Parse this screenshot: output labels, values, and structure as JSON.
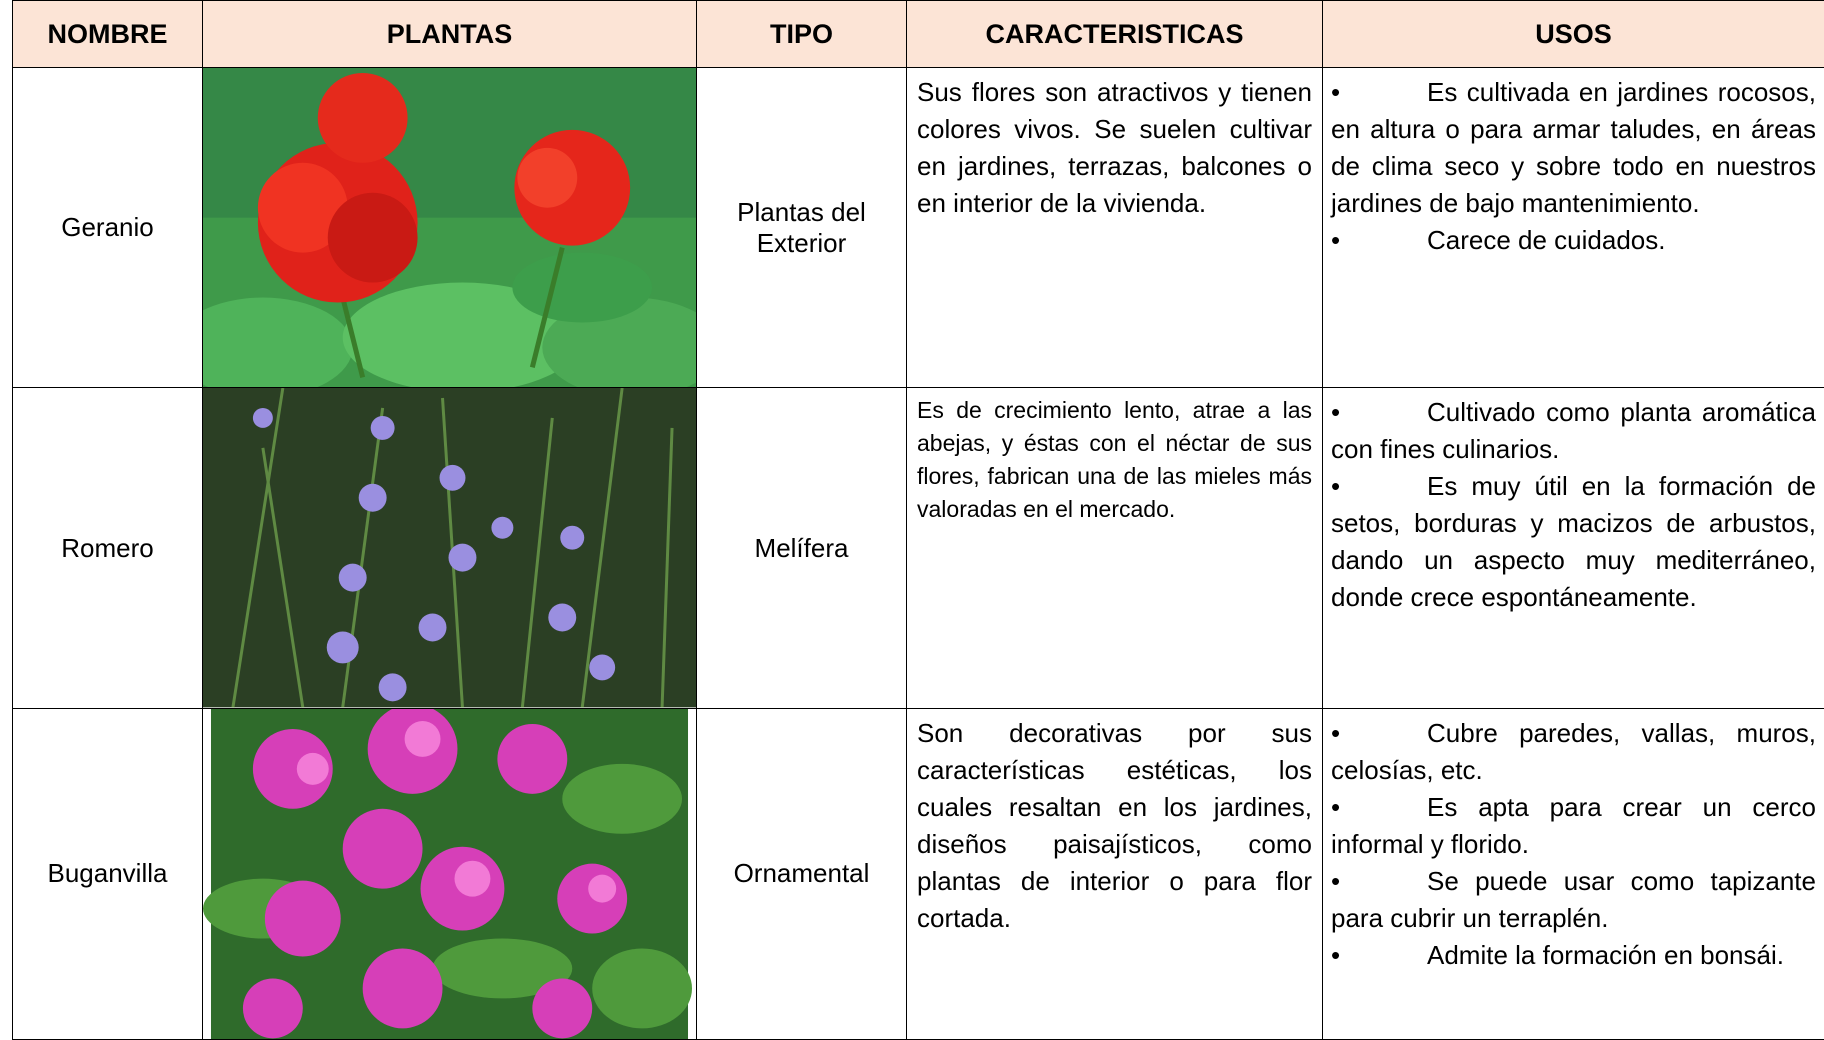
{
  "table": {
    "header": [
      "NOMBRE",
      "PLANTAS",
      "TIPO",
      "CARACTERISTICAS",
      "USOS"
    ],
    "rows": [
      {
        "nombre": "Geranio",
        "tipo": "Plantas del Exterior",
        "caracteristicas": "Sus flores son atractivos y tienen colores vivos. Se suelen cultivar en jardines, terrazas, balcones o en interior de la vivienda.",
        "usos": [
          "Es cultivada en jardines rocosos, en altura o para armar taludes, en áreas de clima seco y sobre todo en nuestros jardines de bajo mantenimiento.",
          "Carece de cuidados."
        ]
      },
      {
        "nombre": "Romero",
        "tipo": "Melífera",
        "caracteristicas": "Es de crecimiento lento, atrae a las abejas, y éstas con el néctar de sus flores, fabrican una de las mieles más valoradas en el mercado.",
        "usos": [
          "Cultivado como planta aromática con fines culinarios.",
          "Es muy útil en la formación de setos, borduras y macizos de arbustos, dando un aspecto muy mediterráneo, donde crece espontáneamente."
        ]
      },
      {
        "nombre": "Buganvilla",
        "tipo": "Ornamental",
        "caracteristicas": "Son decorativas por sus características estéticas, los cuales resaltan en los jardines, diseños paisajísticos, como plantas de interior o para flor cortada.",
        "usos": [
          "Cubre paredes, vallas, muros, celosías, etc.",
          "Es apta para crear un cerco informal y florido.",
          "Se puede usar como tapizante para cubrir un terraplén.",
          "Admite la formación en bonsái."
        ]
      }
    ]
  }
}
